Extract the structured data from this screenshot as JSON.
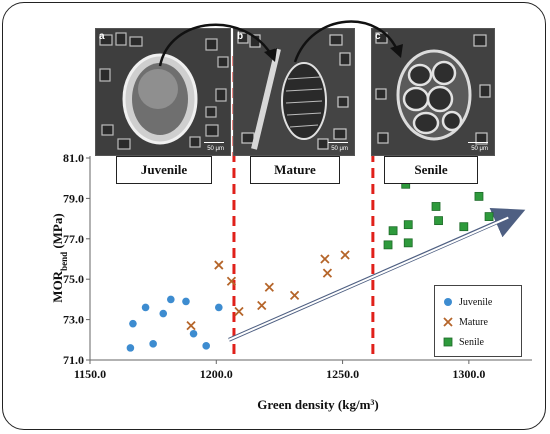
{
  "chart_data": {
    "type": "scatter",
    "xlabel": "Green density (kg/m3)",
    "ylabel": "MORbend (MPa)",
    "xlim": [
      1150,
      1325
    ],
    "ylim": [
      71.0,
      81.0
    ],
    "x_ticks": [
      "1150.0",
      "1200.0",
      "1250.0",
      "1300.0"
    ],
    "y_ticks": [
      "71.0",
      "73.0",
      "75.0",
      "77.0",
      "79.0",
      "81.0"
    ],
    "boundaries": [
      1207,
      1262
    ],
    "trend_arrow": {
      "from": [
        1205,
        72.0
      ],
      "to": [
        1318,
        78.2
      ]
    },
    "legend_position": "bottom-right",
    "series": [
      {
        "name": "Juvenile",
        "marker": "circle",
        "color": "#3d8cd0",
        "points": [
          [
            1166,
            71.6
          ],
          [
            1167,
            72.8
          ],
          [
            1172,
            73.6
          ],
          [
            1175,
            71.8
          ],
          [
            1179,
            73.3
          ],
          [
            1182,
            74.0
          ],
          [
            1188,
            73.9
          ],
          [
            1191,
            72.3
          ],
          [
            1196,
            71.7
          ],
          [
            1201,
            73.6
          ]
        ]
      },
      {
        "name": "Mature",
        "marker": "x",
        "color": "#b5652a",
        "points": [
          [
            1190,
            72.7
          ],
          [
            1201,
            75.7
          ],
          [
            1206,
            74.9
          ],
          [
            1209,
            73.4
          ],
          [
            1218,
            73.7
          ],
          [
            1221,
            74.6
          ],
          [
            1231,
            74.2
          ],
          [
            1243,
            76.0
          ],
          [
            1244,
            75.3
          ],
          [
            1251,
            76.2
          ]
        ]
      },
      {
        "name": "Senile",
        "marker": "square",
        "color": "#2e9a3c",
        "points": [
          [
            1268,
            76.7
          ],
          [
            1270,
            77.4
          ],
          [
            1275,
            79.7
          ],
          [
            1276,
            77.7
          ],
          [
            1276,
            76.8
          ],
          [
            1287,
            78.6
          ],
          [
            1288,
            77.9
          ],
          [
            1298,
            77.6
          ],
          [
            1304,
            79.1
          ],
          [
            1308,
            78.1
          ]
        ]
      }
    ]
  },
  "stages": [
    "Juvenile",
    "Mature",
    "Senile"
  ],
  "panels": [
    {
      "letter": "a",
      "scale": "50 μm"
    },
    {
      "letter": "b",
      "scale": "50 μm"
    },
    {
      "letter": "c",
      "scale": "50 μm"
    }
  ],
  "legend": [
    {
      "label": "Juvenile",
      "marker": "circle",
      "color": "#3d8cd0"
    },
    {
      "label": "Mature",
      "marker": "x",
      "color": "#b5652a"
    },
    {
      "label": "Senile",
      "marker": "square",
      "color": "#2e9a3c"
    }
  ]
}
